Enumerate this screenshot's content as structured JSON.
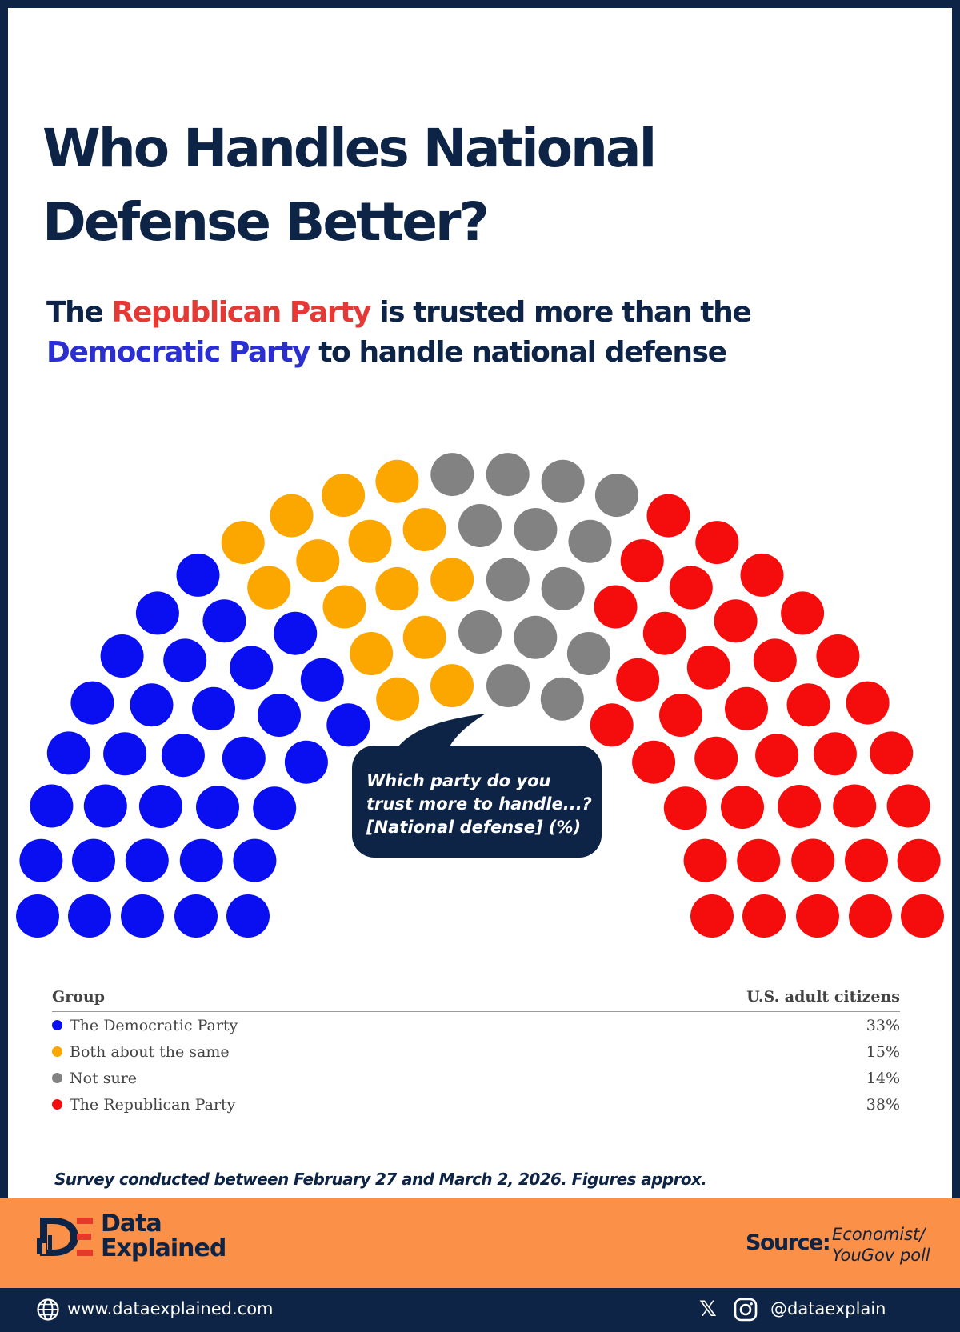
{
  "header": {
    "title_line1": "Who Handles National",
    "title_line2": "Defense Better?",
    "subtitle_pre": "The ",
    "subtitle_rep": "Republican Party",
    "subtitle_mid": " is trusted more than the",
    "subtitle_dem": "Democratic Party",
    "subtitle_post": " to handle national defense"
  },
  "bubble": {
    "line1": "Which party do you",
    "line2": "trust more to handle...?",
    "line3": "[National defense] (%)"
  },
  "chart_data": {
    "type": "parliament",
    "total_seats": 100,
    "series": [
      {
        "name": "The Democratic Party",
        "value": 33,
        "color": "#0a0ff2"
      },
      {
        "name": "Both about the same",
        "value": 15,
        "color": "#fca600"
      },
      {
        "name": "Not sure",
        "value": 14,
        "color": "#828282"
      },
      {
        "name": "The Republican Party",
        "value": 38,
        "color": "#f50d0d"
      }
    ]
  },
  "table": {
    "col_group": "Group",
    "col_value": "U.S. adult citizens",
    "rows": [
      {
        "label": "The Democratic Party",
        "value": "33%",
        "color": "#0a0ff2"
      },
      {
        "label": "Both about the same",
        "value": "15%",
        "color": "#fca600"
      },
      {
        "label": "Not sure",
        "value": "14%",
        "color": "#828282"
      },
      {
        "label": "The Republican Party",
        "value": "38%",
        "color": "#f50d0d"
      }
    ]
  },
  "footnote": "Survey conducted between February 27 and March 2, 2026. Figures approx.",
  "brand": {
    "name_line1": "Data",
    "name_line2": "Explained",
    "logo_icon": "data-explained-logo"
  },
  "source": {
    "label": "Source:",
    "line1": "Economist/",
    "line2": "YouGov poll"
  },
  "footer": {
    "website": "www.dataexplained.com",
    "handle": "@dataexplain",
    "icons": [
      "globe-icon",
      "x-icon",
      "instagram-icon"
    ]
  }
}
